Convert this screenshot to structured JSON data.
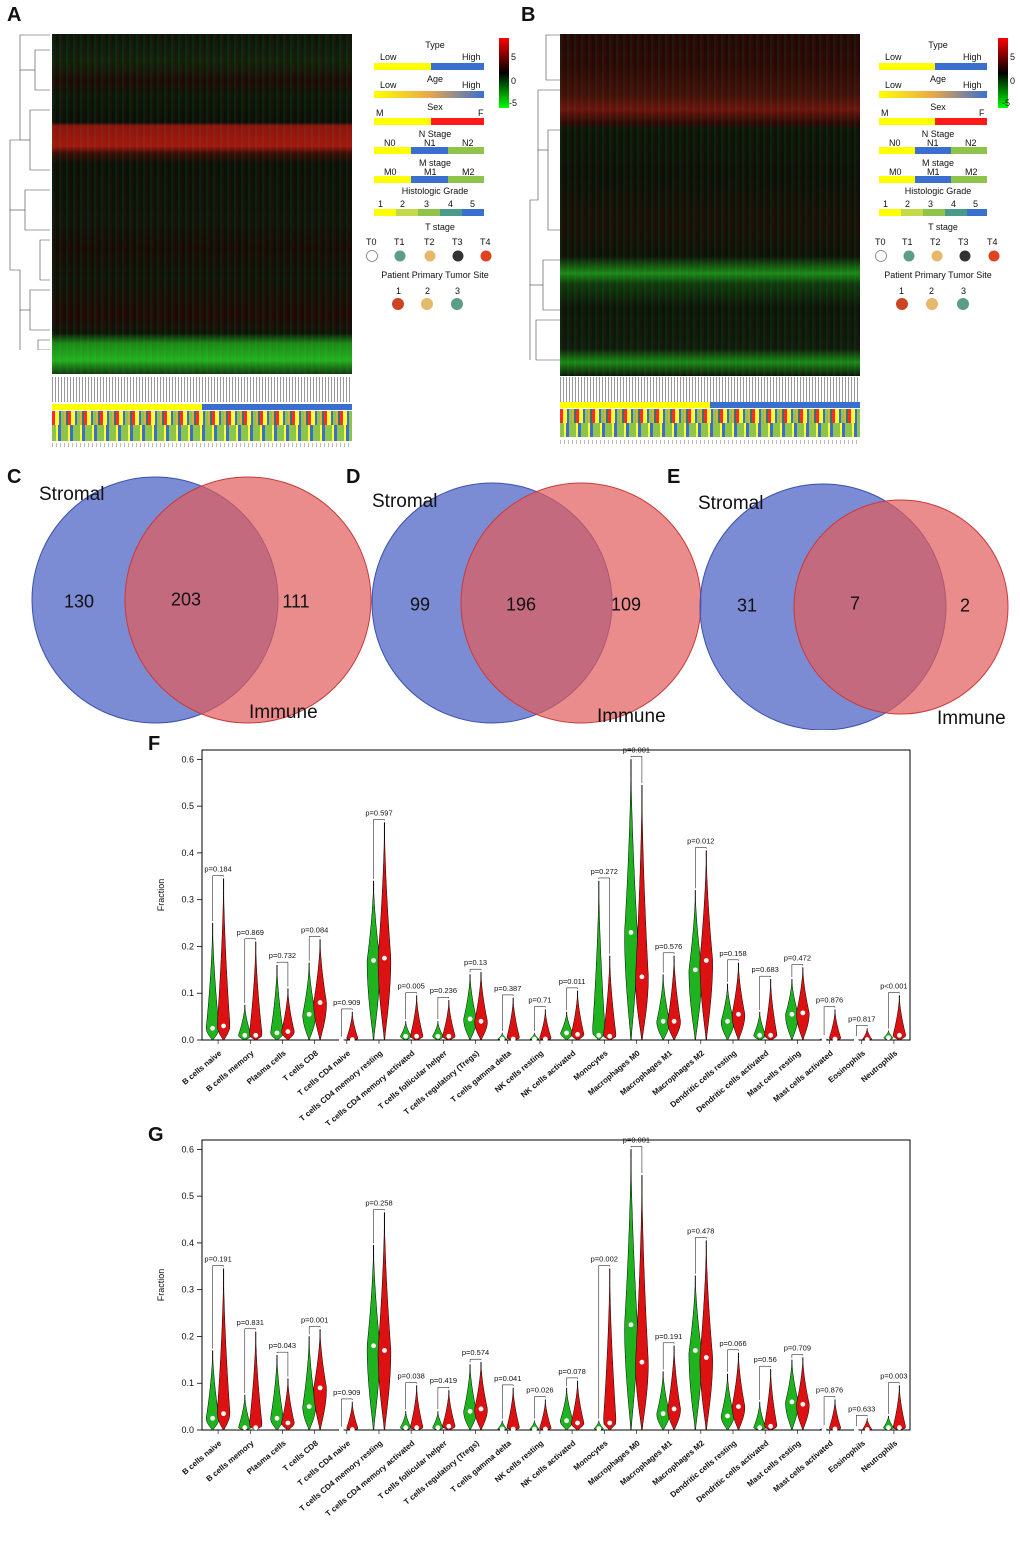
{
  "panels": {
    "A": "A",
    "B": "B",
    "C": "C",
    "D": "D",
    "E": "E",
    "F": "F",
    "G": "G"
  },
  "heatmap_legend": {
    "scale_ticks": [
      "5",
      "0",
      "-5"
    ],
    "type": {
      "title": "Type",
      "low": "Low",
      "high": "High"
    },
    "age": {
      "title": "Age",
      "low": "Low",
      "high": "High"
    },
    "sex": {
      "title": "Sex",
      "m": "M",
      "f": "F"
    },
    "n_stage": {
      "title": "N Stage",
      "levels": [
        "N0",
        "N1",
        "N2"
      ]
    },
    "m_stage": {
      "title": "M stage",
      "levels": [
        "M0",
        "M1",
        "M2"
      ]
    },
    "grade": {
      "title": "Histologic Grade",
      "levels": [
        "1",
        "2",
        "3",
        "4",
        "5"
      ]
    },
    "t_stage": {
      "title": "T stage",
      "levels": [
        "T0",
        "T1",
        "T2",
        "T3",
        "T4"
      ]
    },
    "site": {
      "title": "Patient Primary Tumor Site",
      "levels": [
        "1",
        "2",
        "3"
      ]
    },
    "colors": {
      "yellow": "#ffff00",
      "blue": "#3a6fcf",
      "red": "#ff1a1a",
      "green": "#8fc44a",
      "heat_high": "#ff0000",
      "heat_low": "#00ff00"
    }
  },
  "venns": [
    {
      "left_label": "Stromal",
      "right_label": "Immune",
      "left_only": "130",
      "both": "203",
      "right_only": "111"
    },
    {
      "left_label": "Stromal",
      "right_label": "Immune",
      "left_only": "99",
      "both": "196",
      "right_only": "109"
    },
    {
      "left_label": "Stromal",
      "right_label": "Immune",
      "left_only": "31",
      "both": "7",
      "right_only": "2"
    }
  ],
  "chart_data": [
    {
      "type": "violin",
      "panel": "F",
      "ylabel": "Fraction",
      "ylim": [
        0,
        0.62
      ],
      "yticks": [
        "0.0",
        "0.1",
        "0.2",
        "0.3",
        "0.4",
        "0.5",
        "0.6"
      ],
      "series_colors": [
        "#1fb31f",
        "#dd1111"
      ],
      "categories": [
        "B cells naive",
        "B cells memory",
        "Plasma cells",
        "T cells CD8",
        "T cells CD4 naive",
        "T cells CD4 memory resting",
        "T cells CD4 memory activated",
        "T cells follicular helper",
        "T cells regulatory (Tregs)",
        "T cells gamma delta",
        "NK cells resting",
        "NK cells activated",
        "Monocytes",
        "Macrophages M0",
        "Macrophages M1",
        "Macrophages M2",
        "Dendritic cells resting",
        "Dendritic cells activated",
        "Mast cells resting",
        "Mast cells activated",
        "Eosinophils",
        "Neutrophils"
      ],
      "pvalues": [
        "p=0.184",
        "p=0.869",
        "p=0.732",
        "p=0.084",
        "p=0.909",
        "p=0.597",
        "p=0.005",
        "p=0.236",
        "p=0.13",
        "p=0.387",
        "p=0.71",
        "p=0.011",
        "p=0.272",
        "p=0.001",
        "p=0.576",
        "p=0.012",
        "p=0.158",
        "p=0.683",
        "p=0.472",
        "p=0.876",
        "p=0.817",
        "p<0.001"
      ],
      "green": {
        "max": [
          0.25,
          0.075,
          0.16,
          0.165,
          0.003,
          0.34,
          0.04,
          0.04,
          0.14,
          0.015,
          0.015,
          0.06,
          0.34,
          0.6,
          0.14,
          0.32,
          0.12,
          0.06,
          0.13,
          0.006,
          0.004,
          0.02
        ],
        "median": [
          0.025,
          0.01,
          0.015,
          0.055,
          0.0,
          0.17,
          0.008,
          0.008,
          0.045,
          0.002,
          0.002,
          0.015,
          0.01,
          0.23,
          0.04,
          0.15,
          0.04,
          0.01,
          0.055,
          0.001,
          0.0,
          0.005
        ]
      },
      "red": {
        "max": [
          0.345,
          0.21,
          0.11,
          0.215,
          0.06,
          0.465,
          0.095,
          0.085,
          0.145,
          0.09,
          0.065,
          0.105,
          0.18,
          0.545,
          0.18,
          0.405,
          0.165,
          0.13,
          0.155,
          0.065,
          0.025,
          0.095
        ],
        "median": [
          0.03,
          0.01,
          0.018,
          0.08,
          0.001,
          0.175,
          0.008,
          0.008,
          0.04,
          0.002,
          0.002,
          0.012,
          0.008,
          0.135,
          0.04,
          0.17,
          0.055,
          0.01,
          0.058,
          0.002,
          0.001,
          0.01
        ]
      }
    },
    {
      "type": "violin",
      "panel": "G",
      "ylabel": "Fraction",
      "ylim": [
        0,
        0.62
      ],
      "yticks": [
        "0.0",
        "0.1",
        "0.2",
        "0.3",
        "0.4",
        "0.5",
        "0.6"
      ],
      "series_colors": [
        "#1fb31f",
        "#dd1111"
      ],
      "categories": [
        "B cells naive",
        "B cells memory",
        "Plasma cells",
        "T cells CD8",
        "T cells CD4 naive",
        "T cells CD4 memory resting",
        "T cells CD4 memory activated",
        "T cells follicular helper",
        "T cells regulatory (Tregs)",
        "T cells gamma delta",
        "NK cells resting",
        "NK cells activated",
        "Monocytes",
        "Macrophages M0",
        "Macrophages M1",
        "Macrophages M2",
        "Dendritic cells resting",
        "Dendritic cells activated",
        "Mast cells resting",
        "Mast cells activated",
        "Eosinophils",
        "Neutrophils"
      ],
      "pvalues": [
        "p=0.191",
        "p=0.831",
        "p=0.043",
        "p=0.001",
        "p=0.909",
        "p=0.258",
        "p=0.038",
        "p=0.419",
        "p=0.574",
        "p=0.041",
        "p=0.026",
        "p=0.078",
        "p=0.002",
        "p=0.001",
        "p=0.191",
        "p=0.478",
        "p=0.066",
        "p=0.56",
        "p=0.709",
        "p=0.876",
        "p=0.633",
        "p=0.003"
      ],
      "green": {
        "max": [
          0.17,
          0.075,
          0.16,
          0.2,
          0.003,
          0.395,
          0.04,
          0.04,
          0.14,
          0.02,
          0.02,
          0.09,
          0.02,
          0.6,
          0.125,
          0.33,
          0.12,
          0.06,
          0.15,
          0.006,
          0.004,
          0.03
        ],
        "median": [
          0.025,
          0.005,
          0.025,
          0.05,
          0.0,
          0.18,
          0.005,
          0.005,
          0.04,
          0.002,
          0.002,
          0.02,
          0.003,
          0.225,
          0.035,
          0.17,
          0.03,
          0.005,
          0.06,
          0.001,
          0.0,
          0.005
        ]
      },
      "red": {
        "max": [
          0.345,
          0.21,
          0.11,
          0.215,
          0.06,
          0.465,
          0.095,
          0.085,
          0.145,
          0.09,
          0.065,
          0.105,
          0.345,
          0.545,
          0.18,
          0.405,
          0.165,
          0.13,
          0.155,
          0.065,
          0.025,
          0.095
        ],
        "median": [
          0.035,
          0.005,
          0.015,
          0.09,
          0.001,
          0.17,
          0.005,
          0.008,
          0.045,
          0.002,
          0.002,
          0.015,
          0.015,
          0.145,
          0.045,
          0.155,
          0.05,
          0.008,
          0.055,
          0.002,
          0.001,
          0.005
        ]
      }
    }
  ]
}
